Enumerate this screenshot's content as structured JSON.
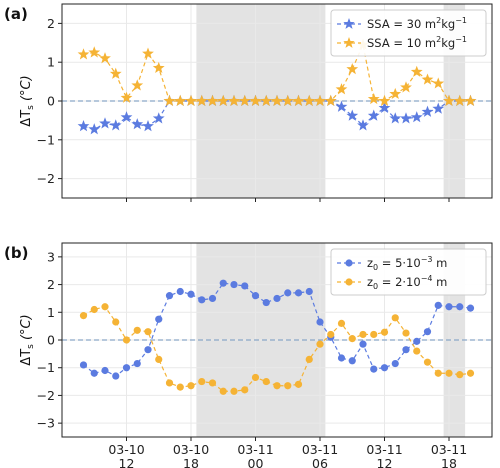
{
  "colors": {
    "blue": "#5b7be0",
    "orange": "#f5b335",
    "shade": "#e3e3e3",
    "zero_line": "#8aa8c8",
    "grid": "#e9e9e9"
  },
  "x_tick_labels": [
    {
      "date": "03-10",
      "hour": "12"
    },
    {
      "date": "03-10",
      "hour": "18"
    },
    {
      "date": "03-11",
      "hour": "00"
    },
    {
      "date": "03-11",
      "hour": "06"
    },
    {
      "date": "03-11",
      "hour": "12"
    },
    {
      "date": "03-11",
      "hour": "18"
    }
  ],
  "chart_data": [
    {
      "type": "line",
      "panel_label": "(a)",
      "ylabel": "ΔT_s (°C)",
      "ylim": [
        -2.5,
        2.5
      ],
      "yticks": [
        -2,
        -1,
        0,
        1,
        2
      ],
      "xlim": [
        "2023-03-10 06:00",
        "2023-03-11 22:00"
      ],
      "grid": true,
      "legend_position": "top-right",
      "marker": "star",
      "shaded_periods": [
        [
          "2023-03-10 18:30",
          "2023-03-11 06:30"
        ],
        [
          "2023-03-11 17:30",
          "2023-03-11 19:30"
        ]
      ],
      "x": [
        "2023-03-10 08:00",
        "2023-03-10 09:00",
        "2023-03-10 10:00",
        "2023-03-10 11:00",
        "2023-03-10 12:00",
        "2023-03-10 13:00",
        "2023-03-10 14:00",
        "2023-03-10 15:00",
        "2023-03-10 16:00",
        "2023-03-10 17:00",
        "2023-03-10 18:00",
        "2023-03-10 19:00",
        "2023-03-10 20:00",
        "2023-03-10 21:00",
        "2023-03-10 22:00",
        "2023-03-10 23:00",
        "2023-03-11 00:00",
        "2023-03-11 01:00",
        "2023-03-11 02:00",
        "2023-03-11 03:00",
        "2023-03-11 04:00",
        "2023-03-11 05:00",
        "2023-03-11 06:00",
        "2023-03-11 07:00",
        "2023-03-11 08:00",
        "2023-03-11 09:00",
        "2023-03-11 10:00",
        "2023-03-11 11:00",
        "2023-03-11 12:00",
        "2023-03-11 13:00",
        "2023-03-11 14:00",
        "2023-03-11 15:00",
        "2023-03-11 16:00",
        "2023-03-11 17:00",
        "2023-03-11 18:00",
        "2023-03-11 19:00",
        "2023-03-11 20:00"
      ],
      "series": [
        {
          "name": "SSA = 30 m²kg⁻¹",
          "legend_main": "SSA = 30 m",
          "legend_sup1": "2",
          "legend_mid": "kg",
          "legend_sup2": "−1",
          "color": "#5b7be0",
          "values": [
            -0.65,
            -0.73,
            -0.58,
            -0.63,
            -0.42,
            -0.6,
            -0.65,
            -0.45,
            0,
            0,
            0,
            0,
            0,
            0,
            0,
            0,
            0,
            0,
            0,
            0,
            0,
            0,
            0,
            0,
            -0.15,
            -0.38,
            -0.63,
            -0.38,
            -0.18,
            -0.45,
            -0.45,
            -0.42,
            -0.28,
            -0.2,
            0,
            0,
            0
          ]
        },
        {
          "name": "SSA = 10 m²kg⁻¹",
          "legend_main": "SSA = 10 m",
          "legend_sup1": "2",
          "legend_mid": "kg",
          "legend_sup2": "−1",
          "color": "#f5b335",
          "values": [
            1.2,
            1.25,
            1.1,
            0.7,
            0.08,
            0.4,
            1.22,
            0.85,
            0,
            0,
            0,
            0,
            0,
            0,
            0,
            0,
            0,
            0,
            0,
            0,
            0,
            0,
            0,
            0,
            0.3,
            0.82,
            1.45,
            0.05,
            0.0,
            0.18,
            0.35,
            0.75,
            0.55,
            0.45,
            0,
            0,
            0
          ]
        }
      ]
    },
    {
      "type": "line",
      "panel_label": "(b)",
      "ylabel": "ΔT_s (°C)",
      "ylim": [
        -3.5,
        3.5
      ],
      "yticks": [
        -3,
        -2,
        -1,
        0,
        1,
        2,
        3
      ],
      "xlim": [
        "2023-03-10 06:00",
        "2023-03-11 22:00"
      ],
      "grid": true,
      "legend_position": "top-right",
      "marker": "circle",
      "shaded_periods": [
        [
          "2023-03-10 18:30",
          "2023-03-11 06:30"
        ],
        [
          "2023-03-11 17:30",
          "2023-03-11 19:30"
        ]
      ],
      "x": [
        "2023-03-10 08:00",
        "2023-03-10 09:00",
        "2023-03-10 10:00",
        "2023-03-10 11:00",
        "2023-03-10 12:00",
        "2023-03-10 13:00",
        "2023-03-10 14:00",
        "2023-03-10 15:00",
        "2023-03-10 16:00",
        "2023-03-10 17:00",
        "2023-03-10 18:00",
        "2023-03-10 19:00",
        "2023-03-10 20:00",
        "2023-03-10 21:00",
        "2023-03-10 22:00",
        "2023-03-10 23:00",
        "2023-03-11 00:00",
        "2023-03-11 01:00",
        "2023-03-11 02:00",
        "2023-03-11 03:00",
        "2023-03-11 04:00",
        "2023-03-11 05:00",
        "2023-03-11 06:00",
        "2023-03-11 07:00",
        "2023-03-11 08:00",
        "2023-03-11 09:00",
        "2023-03-11 10:00",
        "2023-03-11 11:00",
        "2023-03-11 12:00",
        "2023-03-11 13:00",
        "2023-03-11 14:00",
        "2023-03-11 15:00",
        "2023-03-11 16:00",
        "2023-03-11 17:00",
        "2023-03-11 18:00",
        "2023-03-11 19:00",
        "2023-03-11 20:00"
      ],
      "series": [
        {
          "name": "z₀ = 5·10⁻³ m",
          "legend_main": "z",
          "legend_sub": "0",
          "legend_mid": " = 5·10",
          "legend_sup": "−3",
          "legend_end": " m",
          "color": "#5b7be0",
          "values": [
            -0.9,
            -1.2,
            -1.1,
            -1.3,
            -1.0,
            -0.85,
            -0.35,
            0.75,
            1.6,
            1.75,
            1.65,
            1.45,
            1.5,
            2.05,
            2.0,
            1.95,
            1.6,
            1.35,
            1.5,
            1.7,
            1.7,
            1.75,
            0.65,
            0.1,
            -0.65,
            -0.75,
            -0.15,
            -1.05,
            -1.0,
            -0.85,
            -0.35,
            -0.05,
            0.3,
            1.25,
            1.2,
            1.2,
            1.15
          ]
        },
        {
          "name": "z₀ = 2·10⁻⁴ m",
          "legend_main": "z",
          "legend_sub": "0",
          "legend_mid": " = 2·10",
          "legend_sup": "−4",
          "legend_end": " m",
          "color": "#f5b335",
          "values": [
            0.88,
            1.1,
            1.2,
            0.65,
            0.0,
            0.35,
            0.3,
            -0.7,
            -1.55,
            -1.7,
            -1.65,
            -1.5,
            -1.55,
            -1.85,
            -1.85,
            -1.8,
            -1.35,
            -1.5,
            -1.65,
            -1.65,
            -1.6,
            -0.7,
            -0.15,
            0.2,
            0.6,
            0.05,
            0.2,
            0.2,
            0.28,
            0.8,
            0.25,
            -0.4,
            -0.8,
            -1.2,
            -1.2,
            -1.25,
            -1.2
          ]
        }
      ]
    }
  ]
}
